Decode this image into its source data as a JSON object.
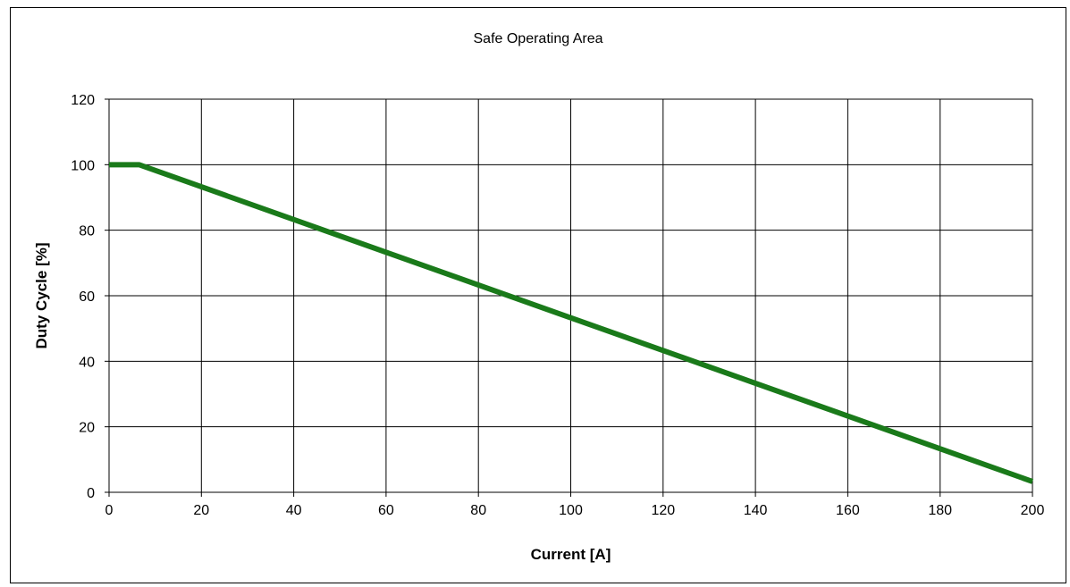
{
  "chart_data": {
    "type": "line",
    "title": "Safe Operating Area",
    "xlabel": "Current [A]",
    "ylabel": "Duty Cycle [%]",
    "xlim": [
      0,
      200
    ],
    "ylim": [
      0,
      120
    ],
    "x_ticks": [
      0,
      20,
      40,
      60,
      80,
      100,
      120,
      140,
      160,
      180,
      200
    ],
    "y_ticks": [
      0,
      20,
      40,
      60,
      80,
      100,
      120
    ],
    "grid": true,
    "legend": "none",
    "series": [
      {
        "color": "#1a7a1a",
        "points": [
          [
            0,
            100
          ],
          [
            6.5,
            100
          ],
          [
            200,
            3.3
          ]
        ]
      }
    ]
  }
}
